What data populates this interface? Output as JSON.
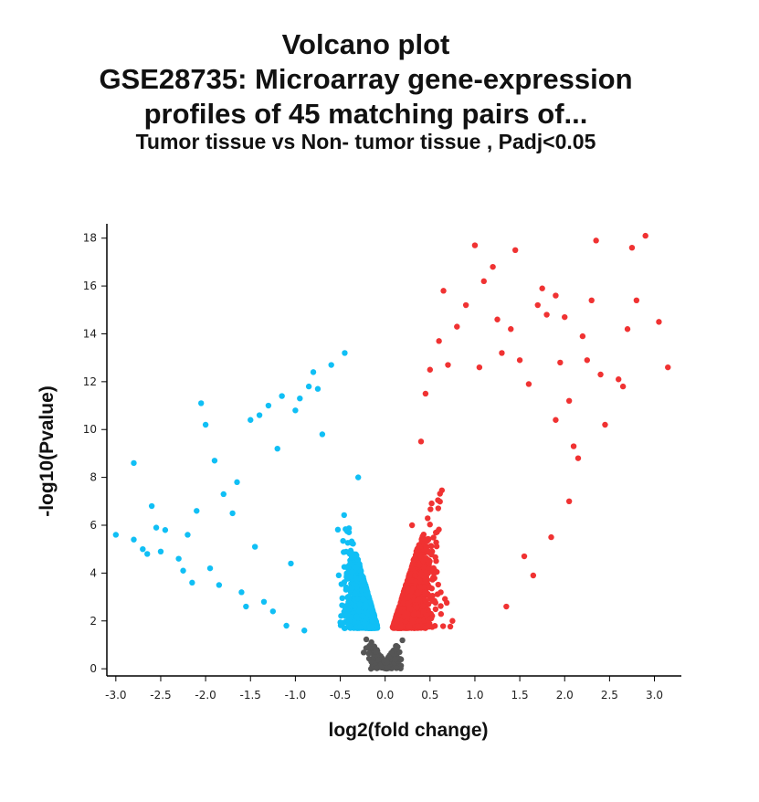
{
  "chart_data": {
    "type": "scatter",
    "title": "Volcano plot",
    "subtitle_lines": [
      "GSE28735: Microarray gene-expression",
      "profiles of 45 matching pairs of..."
    ],
    "comparison": "Tumor tissue vs Non- tumor tissue , Padj<0.05",
    "xlabel": "log2(fold change)",
    "ylabel": "-log10(Pvalue)",
    "xlim": [
      -3.1,
      3.3
    ],
    "ylim": [
      -0.3,
      18.6
    ],
    "xticks": [
      -3.0,
      -2.5,
      -2.0,
      -1.5,
      -1.0,
      -0.5,
      0.0,
      0.5,
      1.0,
      1.5,
      2.0,
      2.5,
      3.0
    ],
    "xtick_labels": [
      "-3.0",
      "-2.5",
      "-2.0",
      "-1.5",
      "-1.0",
      "-0.5",
      "0.0",
      "0.5",
      "1.0",
      "1.5",
      "2.0",
      "2.5",
      "3.0"
    ],
    "yticks": [
      0,
      2,
      4,
      6,
      8,
      10,
      12,
      14,
      16,
      18
    ],
    "ytick_labels": [
      "0",
      "2",
      "4",
      "6",
      "8",
      "10",
      "12",
      "14",
      "16",
      "18"
    ],
    "grid": false,
    "colors": {
      "up": "#f03232",
      "down": "#10bff5",
      "ns": "#555555"
    },
    "series": [
      {
        "group": "down",
        "color": "#10bff5",
        "points": [
          [
            -3.0,
            5.6
          ],
          [
            -2.8,
            8.6
          ],
          [
            -2.8,
            5.4
          ],
          [
            -2.7,
            5.0
          ],
          [
            -2.65,
            4.8
          ],
          [
            -2.6,
            6.8
          ],
          [
            -2.55,
            5.9
          ],
          [
            -2.5,
            4.9
          ],
          [
            -2.45,
            5.8
          ],
          [
            -2.3,
            4.6
          ],
          [
            -2.25,
            4.1
          ],
          [
            -2.2,
            5.6
          ],
          [
            -2.15,
            3.6
          ],
          [
            -2.1,
            6.6
          ],
          [
            -2.05,
            11.1
          ],
          [
            -2.0,
            10.2
          ],
          [
            -1.95,
            4.2
          ],
          [
            -1.9,
            8.7
          ],
          [
            -1.85,
            3.5
          ],
          [
            -1.8,
            7.3
          ],
          [
            -1.7,
            6.5
          ],
          [
            -1.65,
            7.8
          ],
          [
            -1.6,
            3.2
          ],
          [
            -1.55,
            2.6
          ],
          [
            -1.5,
            10.4
          ],
          [
            -1.45,
            5.1
          ],
          [
            -1.4,
            10.6
          ],
          [
            -1.35,
            2.8
          ],
          [
            -1.3,
            11.0
          ],
          [
            -1.25,
            2.4
          ],
          [
            -1.2,
            9.2
          ],
          [
            -1.15,
            11.4
          ],
          [
            -1.1,
            1.8
          ],
          [
            -1.05,
            4.4
          ],
          [
            -1.0,
            10.8
          ],
          [
            -0.95,
            11.3
          ],
          [
            -0.9,
            1.6
          ],
          [
            -0.85,
            11.8
          ],
          [
            -0.8,
            12.4
          ],
          [
            -0.75,
            11.7
          ],
          [
            -0.7,
            9.8
          ],
          [
            -0.6,
            12.7
          ],
          [
            -0.45,
            13.2
          ],
          [
            -0.4,
            2.0
          ],
          [
            -0.3,
            8.0
          ],
          [
            -0.25,
            2.2
          ]
        ]
      },
      {
        "group": "up",
        "color": "#f03232",
        "points": [
          [
            0.25,
            2.3
          ],
          [
            0.3,
            6.0
          ],
          [
            0.4,
            9.5
          ],
          [
            0.45,
            11.5
          ],
          [
            0.5,
            12.5
          ],
          [
            0.6,
            13.7
          ],
          [
            0.65,
            15.8
          ],
          [
            0.7,
            12.7
          ],
          [
            0.75,
            2.0
          ],
          [
            0.8,
            14.3
          ],
          [
            0.9,
            15.2
          ],
          [
            1.0,
            17.7
          ],
          [
            1.05,
            12.6
          ],
          [
            1.1,
            16.2
          ],
          [
            1.2,
            16.8
          ],
          [
            1.25,
            14.6
          ],
          [
            1.3,
            13.2
          ],
          [
            1.35,
            2.6
          ],
          [
            1.4,
            14.2
          ],
          [
            1.45,
            17.5
          ],
          [
            1.5,
            12.9
          ],
          [
            1.55,
            4.7
          ],
          [
            1.6,
            11.9
          ],
          [
            1.65,
            3.9
          ],
          [
            1.7,
            15.2
          ],
          [
            1.75,
            15.9
          ],
          [
            1.8,
            14.8
          ],
          [
            1.85,
            5.5
          ],
          [
            1.9,
            15.6
          ],
          [
            1.95,
            12.8
          ],
          [
            2.0,
            14.7
          ],
          [
            2.05,
            7.0
          ],
          [
            2.1,
            9.3
          ],
          [
            2.15,
            8.8
          ],
          [
            2.2,
            13.9
          ],
          [
            2.25,
            12.9
          ],
          [
            2.3,
            15.4
          ],
          [
            2.35,
            17.9
          ],
          [
            2.4,
            12.3
          ],
          [
            2.45,
            10.2
          ],
          [
            2.6,
            12.1
          ],
          [
            2.65,
            11.8
          ],
          [
            2.7,
            14.2
          ],
          [
            2.75,
            17.6
          ],
          [
            2.8,
            15.4
          ],
          [
            2.9,
            18.1
          ],
          [
            3.05,
            14.5
          ],
          [
            3.15,
            12.6
          ],
          [
            2.05,
            11.2
          ],
          [
            1.9,
            10.4
          ]
        ]
      }
    ]
  }
}
